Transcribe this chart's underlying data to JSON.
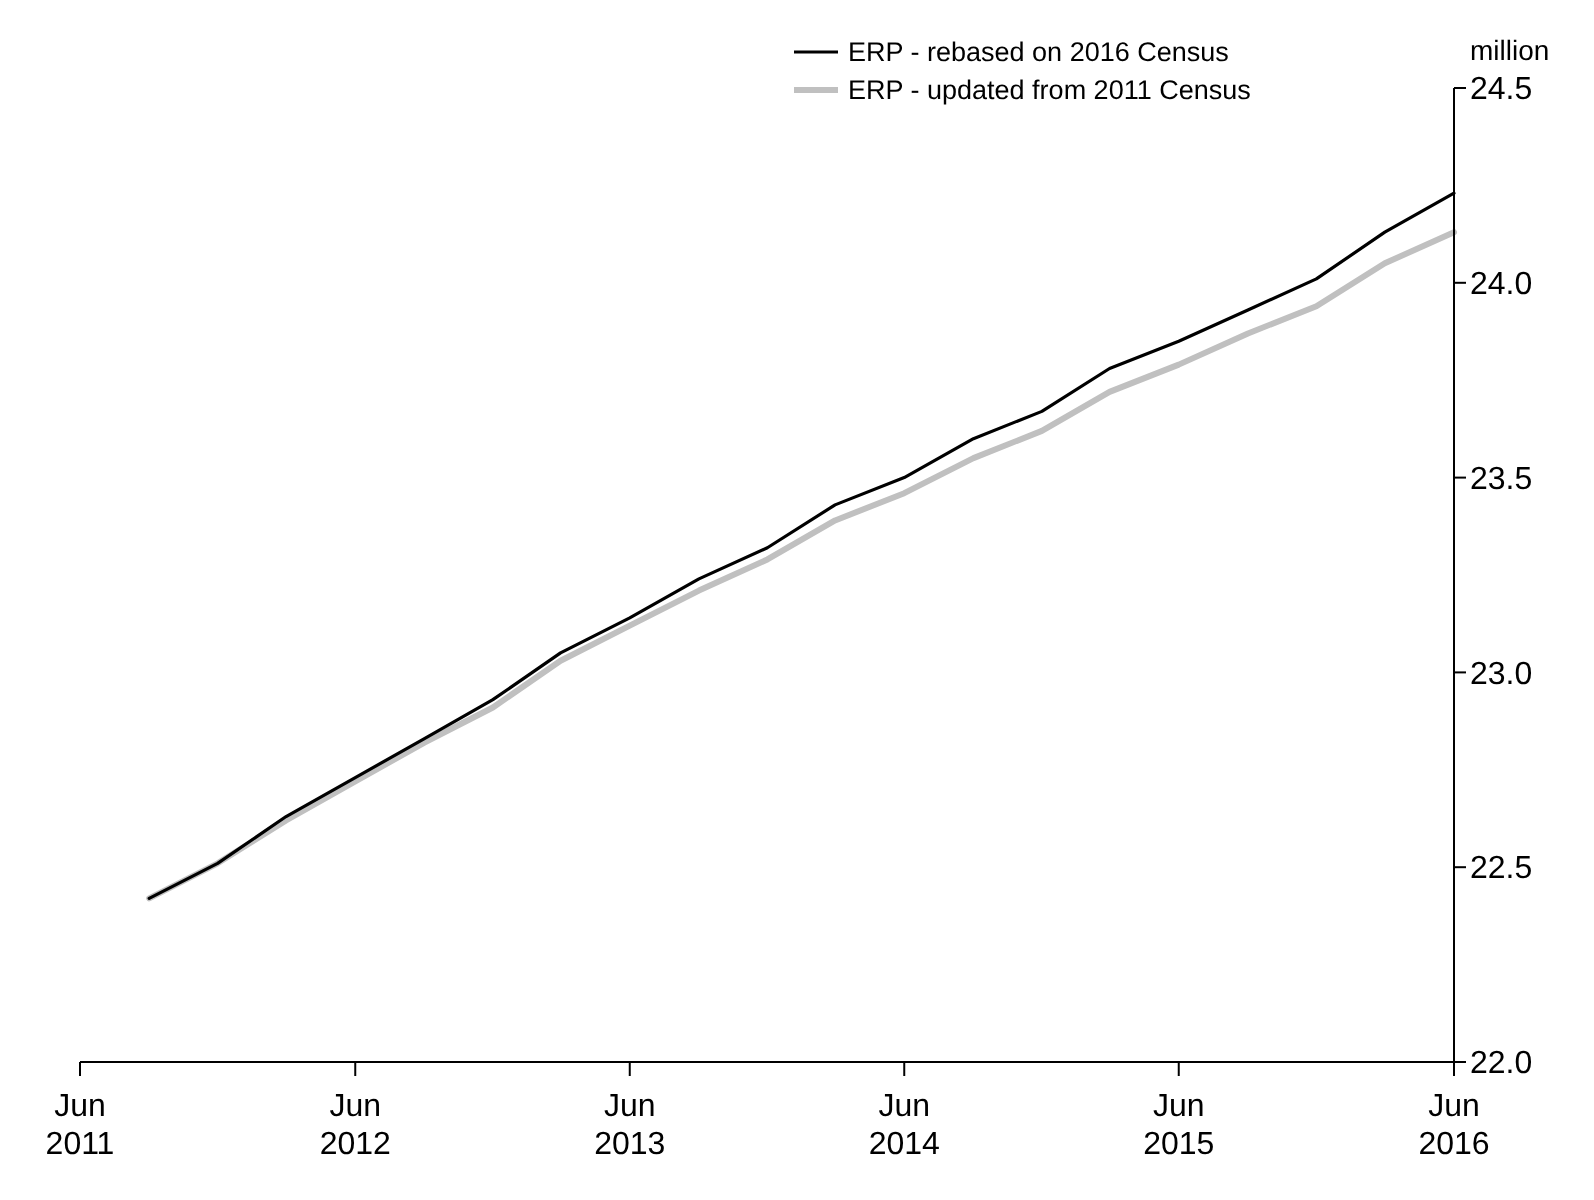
{
  "chart_data": {
    "type": "line",
    "ylabel": "million",
    "x": [
      "2011-09",
      "2011-12",
      "2012-03",
      "2012-06",
      "2012-09",
      "2012-12",
      "2013-03",
      "2013-06",
      "2013-09",
      "2013-12",
      "2014-03",
      "2014-06",
      "2014-09",
      "2014-12",
      "2015-03",
      "2015-06",
      "2015-09",
      "2015-12",
      "2016-03",
      "2016-06"
    ],
    "series": [
      {
        "name": "ERP - rebased on 2016 Census",
        "color": "#000000",
        "values": [
          22.42,
          22.51,
          22.63,
          22.73,
          22.83,
          22.93,
          23.05,
          23.14,
          23.24,
          23.32,
          23.43,
          23.5,
          23.6,
          23.67,
          23.78,
          23.85,
          23.93,
          24.01,
          24.13,
          24.23
        ]
      },
      {
        "name": "ERP - updated from 2011 Census",
        "color": "#c0c0c0",
        "values": [
          22.42,
          22.51,
          22.62,
          22.72,
          22.82,
          22.91,
          23.03,
          23.12,
          23.21,
          23.29,
          23.39,
          23.46,
          23.55,
          23.62,
          23.72,
          23.79,
          23.87,
          23.94,
          24.05,
          24.13
        ]
      }
    ],
    "xlim": [
      "2011-06",
      "2016-06"
    ],
    "xticks": [
      {
        "value": "2011-06",
        "label": "Jun 2011"
      },
      {
        "value": "2012-06",
        "label": "Jun 2012"
      },
      {
        "value": "2013-06",
        "label": "Jun 2013"
      },
      {
        "value": "2014-06",
        "label": "Jun 2014"
      },
      {
        "value": "2015-06",
        "label": "Jun 2015"
      },
      {
        "value": "2016-06",
        "label": "Jun 2016"
      }
    ],
    "ylim": [
      22.0,
      24.5
    ],
    "yticks": [
      {
        "value": 22.0,
        "label": "22.0"
      },
      {
        "value": 22.5,
        "label": "22.5"
      },
      {
        "value": 23.0,
        "label": "23.0"
      },
      {
        "value": 23.5,
        "label": "23.5"
      },
      {
        "value": 24.0,
        "label": "24.0"
      },
      {
        "value": 24.5,
        "label": "24.5"
      }
    ],
    "grid": false,
    "legend": "top right",
    "line_style": "solid"
  }
}
